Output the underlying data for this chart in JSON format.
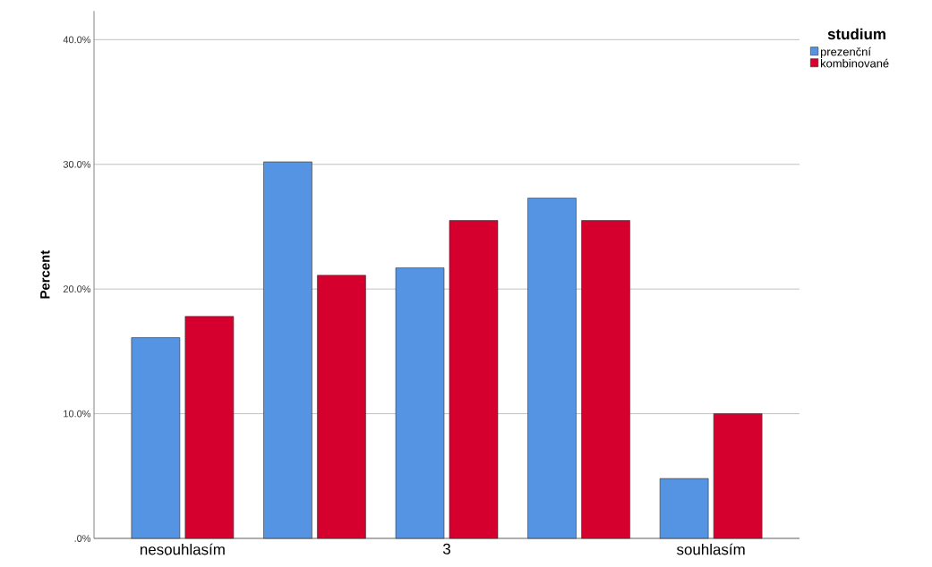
{
  "chart_data": {
    "type": "bar",
    "ylabel": "Percent",
    "legend_title": "studium",
    "categories": [
      "nesouhlasím",
      null,
      "3",
      null,
      "souhlasím"
    ],
    "series": [
      {
        "name": "prezenční",
        "color": "#5593e3",
        "values": [
          16.1,
          30.2,
          21.7,
          27.3,
          4.8
        ]
      },
      {
        "name": "kombinované",
        "color": "#d5002e",
        "values": [
          17.8,
          21.1,
          25.5,
          25.5,
          10.0
        ]
      }
    ],
    "ylim": [
      0,
      42.3
    ],
    "yticks": [
      {
        "value": 0,
        "label": ".0%"
      },
      {
        "value": 10,
        "label": "10.0%"
      },
      {
        "value": 20,
        "label": "20.0%"
      },
      {
        "value": 30,
        "label": "30.0%"
      },
      {
        "value": 40,
        "label": "40.0%"
      }
    ],
    "grid": "y",
    "legend": "top right"
  }
}
